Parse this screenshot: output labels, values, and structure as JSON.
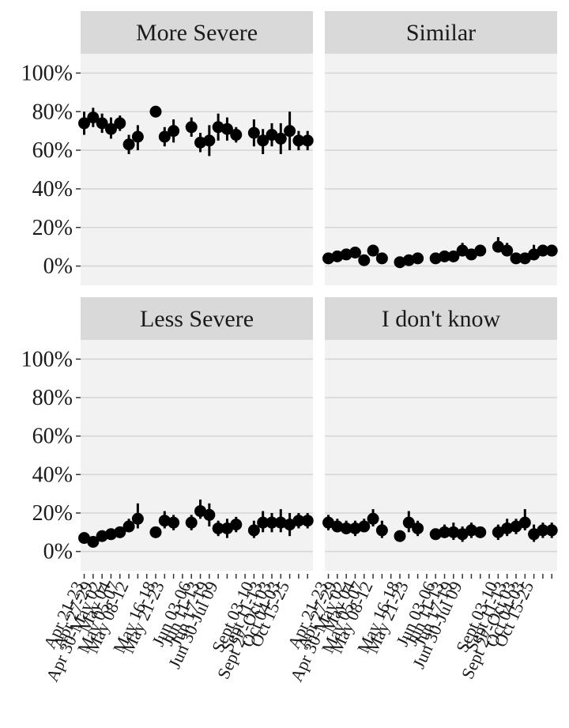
{
  "chart_data": {
    "type": "scatter",
    "ylim": [
      0,
      1
    ],
    "y_ticks": [
      0,
      0.2,
      0.4,
      0.6,
      0.8,
      1.0
    ],
    "y_tick_labels": [
      "0%",
      "20%",
      "40%",
      "60%",
      "80%",
      "100%"
    ],
    "grid": true,
    "x_positions": [
      1,
      2,
      3,
      4,
      5,
      6,
      7,
      9,
      10,
      11,
      13,
      14,
      15,
      16,
      17,
      18,
      20,
      21,
      22,
      23,
      24,
      25,
      26
    ],
    "x_tick_positions": [
      1,
      2,
      3,
      4,
      5,
      6,
      7,
      8,
      9,
      10,
      11,
      12,
      13,
      14,
      15,
      16,
      17,
      18,
      19,
      20,
      21,
      22,
      23,
      24,
      25,
      26
    ],
    "x_tick_labels": [
      {
        "pos": 1,
        "label": "Apr 21-23"
      },
      {
        "pos": 2,
        "label": "Apr 27-29"
      },
      {
        "pos": 3,
        "label": "Apr 30-May 02"
      },
      {
        "pos": 4,
        "label": "May 04"
      },
      {
        "pos": 5,
        "label": "May 05-07"
      },
      {
        "pos": 6,
        "label": "May 08-12"
      },
      {
        "pos": 9,
        "label": "May 16-18"
      },
      {
        "pos": 10,
        "label": "May 21-23"
      },
      {
        "pos": 13,
        "label": "Jun 03-06"
      },
      {
        "pos": 14,
        "label": "Jun 11-13"
      },
      {
        "pos": 15,
        "label": "Jun 17-19"
      },
      {
        "pos": 16,
        "label": "Jun 30-Jul 09"
      },
      {
        "pos": 20,
        "label": "Sept 03-10"
      },
      {
        "pos": 21,
        "label": "Sept 11-13"
      },
      {
        "pos": 22,
        "label": "Sept 27-Oct 03"
      },
      {
        "pos": 23,
        "label": "Oct 04-03"
      },
      {
        "pos": 24,
        "label": "Oct 15-25"
      }
    ],
    "panels": [
      {
        "title": "More Severe",
        "values": [
          0.74,
          0.77,
          0.74,
          0.71,
          0.74,
          0.63,
          0.67,
          0.8,
          0.67,
          0.7,
          0.72,
          0.64,
          0.65,
          0.72,
          0.71,
          0.68,
          0.69,
          0.65,
          0.68,
          0.66,
          0.7,
          0.65,
          0.65
        ],
        "lower": [
          0.68,
          0.72,
          0.69,
          0.66,
          0.7,
          0.58,
          0.6,
          0.77,
          0.62,
          0.64,
          0.67,
          0.59,
          0.57,
          0.65,
          0.65,
          0.64,
          0.62,
          0.58,
          0.62,
          0.58,
          0.6,
          0.6,
          0.6
        ],
        "upper": [
          0.8,
          0.82,
          0.79,
          0.77,
          0.78,
          0.68,
          0.73,
          0.83,
          0.72,
          0.76,
          0.77,
          0.69,
          0.73,
          0.79,
          0.77,
          0.72,
          0.76,
          0.71,
          0.74,
          0.74,
          0.8,
          0.7,
          0.7
        ]
      },
      {
        "title": "Similar",
        "values": [
          0.04,
          0.05,
          0.06,
          0.07,
          0.03,
          0.08,
          0.04,
          0.02,
          0.03,
          0.04,
          0.04,
          0.05,
          0.05,
          0.08,
          0.06,
          0.08,
          0.1,
          0.08,
          0.04,
          0.04,
          0.06,
          0.08,
          0.08
        ],
        "lower": [
          0.02,
          0.03,
          0.04,
          0.04,
          0.01,
          0.05,
          0.02,
          0.0,
          0.01,
          0.02,
          0.02,
          0.02,
          0.02,
          0.05,
          0.04,
          0.06,
          0.07,
          0.05,
          0.02,
          0.02,
          0.03,
          0.05,
          0.05
        ],
        "upper": [
          0.06,
          0.07,
          0.08,
          0.1,
          0.05,
          0.11,
          0.07,
          0.04,
          0.05,
          0.06,
          0.06,
          0.08,
          0.08,
          0.12,
          0.09,
          0.11,
          0.15,
          0.12,
          0.06,
          0.06,
          0.11,
          0.11,
          0.11
        ]
      },
      {
        "title": "Less Severe",
        "values": [
          0.07,
          0.05,
          0.08,
          0.09,
          0.1,
          0.13,
          0.17,
          0.1,
          0.16,
          0.15,
          0.15,
          0.21,
          0.19,
          0.12,
          0.12,
          0.14,
          0.11,
          0.15,
          0.15,
          0.15,
          0.14,
          0.16,
          0.16
        ],
        "lower": [
          0.04,
          0.03,
          0.05,
          0.06,
          0.07,
          0.1,
          0.12,
          0.07,
          0.12,
          0.11,
          0.11,
          0.17,
          0.13,
          0.08,
          0.07,
          0.1,
          0.07,
          0.1,
          0.1,
          0.1,
          0.08,
          0.12,
          0.12
        ],
        "upper": [
          0.1,
          0.07,
          0.11,
          0.12,
          0.13,
          0.17,
          0.25,
          0.13,
          0.21,
          0.19,
          0.19,
          0.27,
          0.25,
          0.16,
          0.17,
          0.18,
          0.16,
          0.21,
          0.2,
          0.22,
          0.2,
          0.2,
          0.2
        ]
      },
      {
        "title": "I don't know",
        "values": [
          0.15,
          0.13,
          0.12,
          0.12,
          0.13,
          0.17,
          0.11,
          0.08,
          0.15,
          0.12,
          0.09,
          0.1,
          0.1,
          0.09,
          0.11,
          0.1,
          0.1,
          0.12,
          0.13,
          0.15,
          0.09,
          0.11,
          0.11
        ],
        "lower": [
          0.11,
          0.1,
          0.09,
          0.08,
          0.1,
          0.13,
          0.07,
          0.05,
          0.1,
          0.08,
          0.06,
          0.07,
          0.06,
          0.05,
          0.07,
          0.07,
          0.06,
          0.08,
          0.09,
          0.11,
          0.05,
          0.07,
          0.07
        ],
        "upper": [
          0.19,
          0.17,
          0.16,
          0.16,
          0.17,
          0.22,
          0.16,
          0.11,
          0.21,
          0.16,
          0.12,
          0.14,
          0.15,
          0.13,
          0.15,
          0.13,
          0.14,
          0.17,
          0.17,
          0.22,
          0.14,
          0.15,
          0.15
        ]
      }
    ],
    "colors": {
      "panel_background": "#f2f2f2",
      "strip_background": "#d9d9d9",
      "grid": "#d6d6d6",
      "points": "#000000",
      "text": "#1a1a1a"
    }
  }
}
